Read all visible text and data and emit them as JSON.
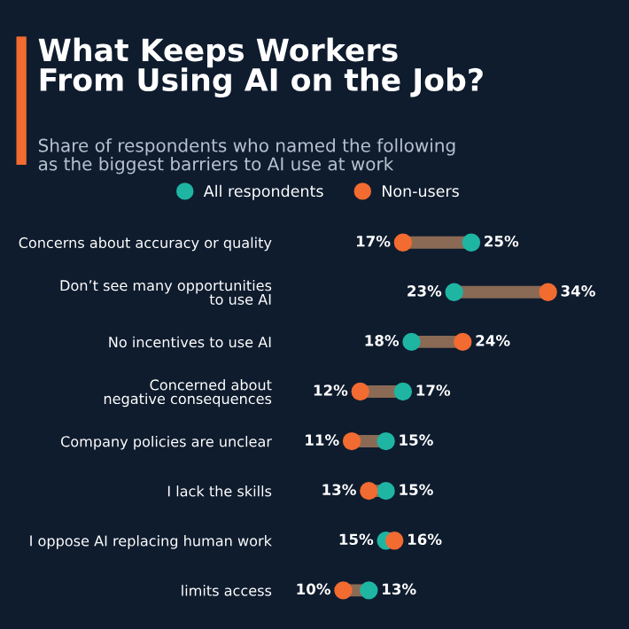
{
  "chart_data": {
    "type": "scatter",
    "orientation": "horizontal",
    "title": "What Keeps Workers\nFrom Using AI on the Job?",
    "subtitle": "Share of respondents who named the following\nas the biggest barriers to AI use at work",
    "categories": [
      "Concerns about accuracy or quality",
      "Don’t see many opportunities\nto use AI",
      "No incentives to use AI",
      "Concerned about\nnegative consequences",
      "Company policies are unclear",
      "I lack the skills",
      "I oppose AI replacing human work",
      "limits access"
    ],
    "series": [
      {
        "name": "All respondents",
        "color": "#1fb5a3",
        "values": [
          25,
          23,
          18,
          17,
          15,
          15,
          15,
          13
        ],
        "value_labels": [
          "25%",
          "23%",
          "18%",
          "17%",
          "15%",
          "15%",
          "15%",
          "13%"
        ]
      },
      {
        "name": "Non-users",
        "color": "#f26b30",
        "values": [
          17,
          34,
          24,
          12,
          11,
          13,
          16,
          10
        ],
        "value_labels": [
          "17%",
          "34%",
          "24%",
          "12%",
          "11%",
          "13%",
          "16%",
          "10%"
        ]
      }
    ],
    "tick_labels": "y",
    "legend": "top",
    "marker": "circle",
    "grid": false
  }
}
